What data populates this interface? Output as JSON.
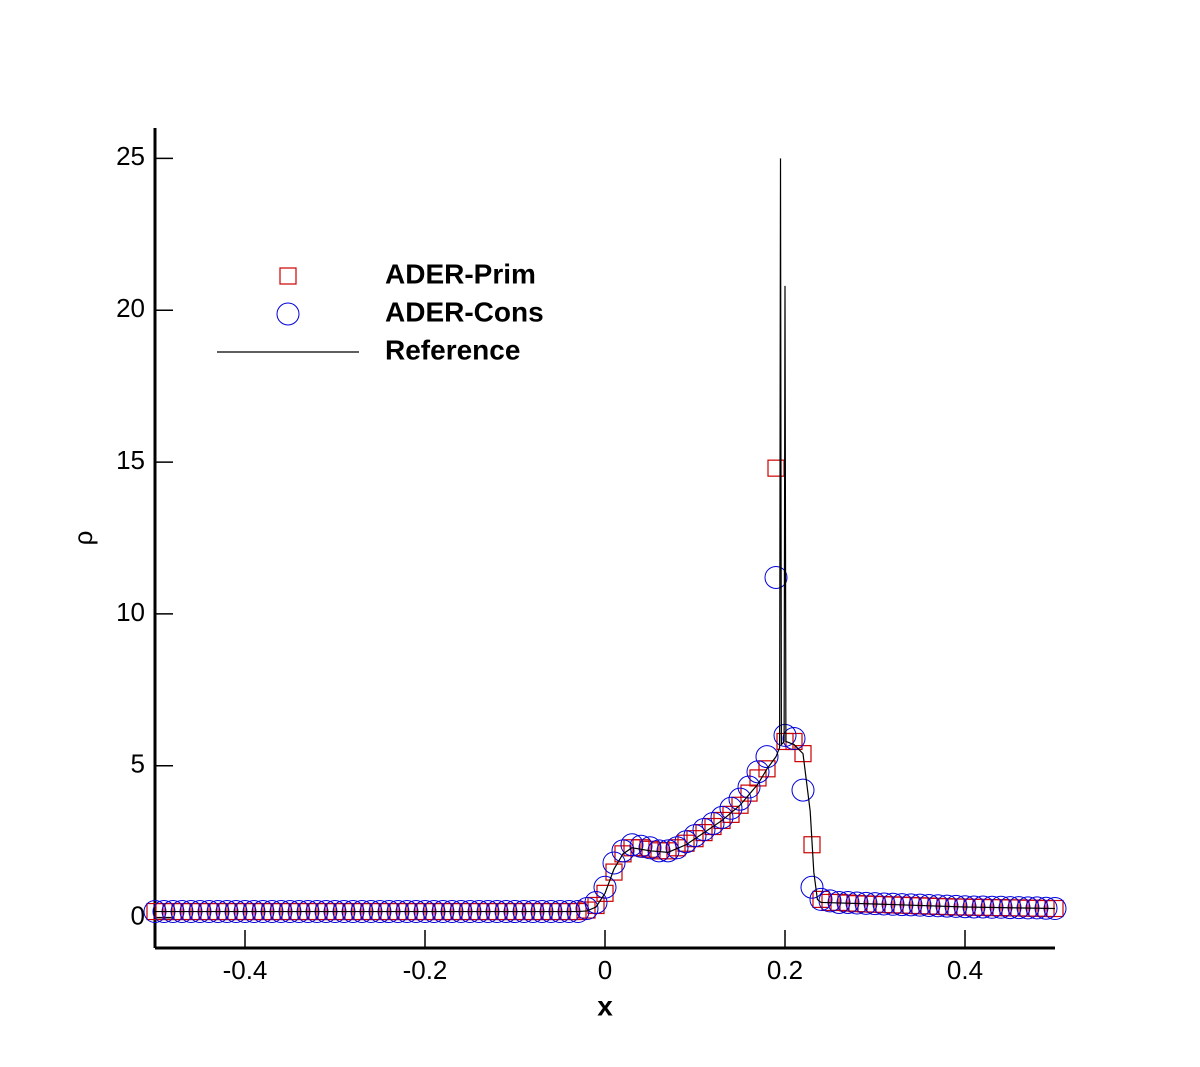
{
  "chart_data": {
    "type": "scatter",
    "x_label": "x",
    "y_label": "ρ",
    "xlim": [
      -0.5,
      0.5
    ],
    "ylim": [
      -1,
      26
    ],
    "xticks": [
      -0.4,
      -0.2,
      0,
      0.2,
      0.4
    ],
    "yticks": [
      0,
      5,
      10,
      15,
      20,
      25
    ],
    "x": [
      -0.5,
      -0.49,
      -0.48,
      -0.47,
      -0.46,
      -0.45,
      -0.44,
      -0.43,
      -0.42,
      -0.41,
      -0.4,
      -0.39,
      -0.38,
      -0.37,
      -0.36,
      -0.35,
      -0.34,
      -0.33,
      -0.32,
      -0.31,
      -0.3,
      -0.29,
      -0.28,
      -0.27,
      -0.26,
      -0.25,
      -0.24,
      -0.23,
      -0.22,
      -0.21,
      -0.2,
      -0.19,
      -0.18,
      -0.17,
      -0.16,
      -0.15,
      -0.14,
      -0.13,
      -0.12,
      -0.11,
      -0.1,
      -0.09,
      -0.08,
      -0.07,
      -0.06,
      -0.05,
      -0.04,
      -0.03,
      -0.02,
      -0.01,
      0,
      0.01,
      0.02,
      0.03,
      0.04,
      0.05,
      0.06,
      0.07,
      0.08,
      0.09,
      0.1,
      0.11,
      0.12,
      0.13,
      0.14,
      0.15,
      0.16,
      0.17,
      0.18,
      0.19,
      0.2,
      0.21,
      0.22,
      0.23,
      0.24,
      0.25,
      0.26,
      0.27,
      0.28,
      0.29,
      0.3,
      0.31,
      0.32,
      0.33,
      0.34,
      0.35,
      0.36,
      0.37,
      0.38,
      0.39,
      0.4,
      0.41,
      0.42,
      0.43,
      0.44,
      0.45,
      0.46,
      0.47,
      0.48,
      0.49,
      0.5
    ],
    "series": [
      {
        "name": "ADER-Prim",
        "marker": "square",
        "color": "#cc0000",
        "values": [
          0.2,
          0.2,
          0.2,
          0.2,
          0.2,
          0.2,
          0.2,
          0.2,
          0.2,
          0.2,
          0.2,
          0.2,
          0.2,
          0.2,
          0.2,
          0.2,
          0.2,
          0.2,
          0.2,
          0.2,
          0.2,
          0.2,
          0.2,
          0.2,
          0.2,
          0.2,
          0.2,
          0.2,
          0.2,
          0.2,
          0.2,
          0.2,
          0.2,
          0.2,
          0.2,
          0.2,
          0.2,
          0.2,
          0.2,
          0.2,
          0.2,
          0.2,
          0.2,
          0.2,
          0.2,
          0.2,
          0.2,
          0.2,
          0.25,
          0.4,
          0.8,
          1.5,
          2.1,
          2.3,
          2.3,
          2.25,
          2.2,
          2.2,
          2.3,
          2.45,
          2.6,
          2.8,
          3.0,
          3.2,
          3.4,
          3.7,
          4.1,
          4.6,
          4.9,
          14.8,
          5.8,
          5.8,
          5.4,
          2.4,
          0.6,
          0.5,
          0.5,
          0.48,
          0.46,
          0.45,
          0.44,
          0.43,
          0.42,
          0.41,
          0.4,
          0.39,
          0.38,
          0.37,
          0.36,
          0.35,
          0.35,
          0.34,
          0.34,
          0.33,
          0.33,
          0.32,
          0.32,
          0.31,
          0.31,
          0.3,
          0.3
        ]
      },
      {
        "name": "ADER-Cons",
        "marker": "circle",
        "color": "#0000dd",
        "values": [
          0.2,
          0.2,
          0.2,
          0.2,
          0.2,
          0.2,
          0.2,
          0.2,
          0.2,
          0.2,
          0.2,
          0.2,
          0.2,
          0.2,
          0.2,
          0.2,
          0.2,
          0.2,
          0.2,
          0.2,
          0.2,
          0.2,
          0.2,
          0.2,
          0.2,
          0.2,
          0.2,
          0.2,
          0.2,
          0.2,
          0.2,
          0.2,
          0.2,
          0.2,
          0.2,
          0.2,
          0.2,
          0.2,
          0.2,
          0.2,
          0.2,
          0.2,
          0.2,
          0.2,
          0.2,
          0.2,
          0.2,
          0.2,
          0.3,
          0.5,
          1.0,
          1.8,
          2.2,
          2.4,
          2.35,
          2.3,
          2.2,
          2.2,
          2.3,
          2.5,
          2.7,
          2.9,
          3.1,
          3.3,
          3.6,
          3.9,
          4.3,
          4.8,
          5.3,
          11.2,
          6.0,
          5.9,
          4.2,
          1.0,
          0.6,
          0.55,
          0.5,
          0.5,
          0.48,
          0.47,
          0.46,
          0.45,
          0.44,
          0.43,
          0.42,
          0.41,
          0.4,
          0.39,
          0.38,
          0.37,
          0.36,
          0.35,
          0.35,
          0.34,
          0.34,
          0.33,
          0.33,
          0.32,
          0.32,
          0.31,
          0.3
        ]
      },
      {
        "name": "Reference",
        "marker": "line",
        "color": "#000000",
        "x": [
          -0.5,
          -0.03,
          -0.02,
          -0.01,
          0,
          0.01,
          0.02,
          0.03,
          0.05,
          0.07,
          0.09,
          0.11,
          0.13,
          0.15,
          0.17,
          0.18,
          0.19,
          0.194,
          0.195,
          0.196,
          0.199,
          0.2,
          0.201,
          0.21,
          0.22,
          0.228,
          0.232,
          0.236,
          0.24,
          0.3,
          0.4,
          0.5
        ],
        "values": [
          0.2,
          0.2,
          0.22,
          0.35,
          0.8,
          1.6,
          2.1,
          2.3,
          2.2,
          2.15,
          2.4,
          2.8,
          3.2,
          3.7,
          4.4,
          4.9,
          5.3,
          5.6,
          25,
          5.7,
          5.8,
          20.8,
          5.8,
          5.7,
          5.4,
          3.5,
          1.5,
          0.6,
          0.5,
          0.45,
          0.35,
          0.3
        ]
      }
    ]
  }
}
